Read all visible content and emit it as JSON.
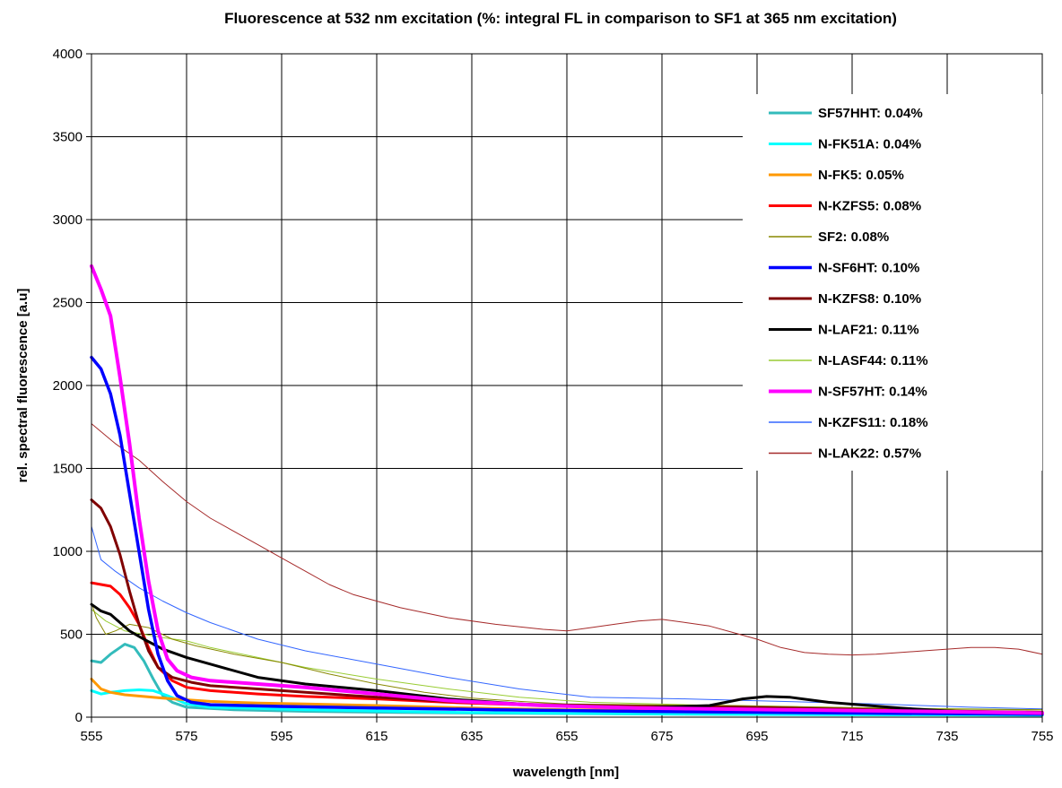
{
  "chart_data": {
    "type": "line",
    "title": "Fluorescence at 532 nm excitation (%: integral FL in comparison to SF1 at 365 nm excitation)",
    "xlabel": "wavelength [nm]",
    "ylabel": "rel. spectral fluorescence [a.u]",
    "xlim": [
      555,
      755
    ],
    "ylim": [
      0,
      4000
    ],
    "xticks": [
      "555",
      "575",
      "595",
      "615",
      "635",
      "655",
      "675",
      "695",
      "715",
      "735",
      "755"
    ],
    "yticks": [
      "0",
      "500",
      "1000",
      "1500",
      "2000",
      "2500",
      "3000",
      "3500",
      "4000"
    ],
    "grid": true,
    "legend_position": "top-right",
    "series": [
      {
        "name": "SF57HHT: 0.04%",
        "color": "#33bbbb",
        "width": 3,
        "points": [
          [
            555,
            340
          ],
          [
            557,
            330
          ],
          [
            559,
            380
          ],
          [
            561,
            420
          ],
          [
            562,
            440
          ],
          [
            564,
            420
          ],
          [
            566,
            340
          ],
          [
            568,
            230
          ],
          [
            570,
            130
          ],
          [
            572,
            90
          ],
          [
            575,
            60
          ],
          [
            585,
            45
          ],
          [
            600,
            35
          ],
          [
            620,
            28
          ],
          [
            650,
            22
          ],
          [
            680,
            18
          ],
          [
            720,
            14
          ],
          [
            755,
            12
          ]
        ]
      },
      {
        "name": "N-FK51A: 0.04%",
        "color": "#00ffff",
        "width": 3,
        "points": [
          [
            555,
            160
          ],
          [
            557,
            140
          ],
          [
            559,
            150
          ],
          [
            562,
            160
          ],
          [
            565,
            165
          ],
          [
            568,
            160
          ],
          [
            571,
            130
          ],
          [
            575,
            80
          ],
          [
            580,
            60
          ],
          [
            600,
            45
          ],
          [
            630,
            30
          ],
          [
            660,
            22
          ],
          [
            700,
            16
          ],
          [
            755,
            12
          ]
        ]
      },
      {
        "name": "N-FK5: 0.05%",
        "color": "#ff9900",
        "width": 3,
        "points": [
          [
            555,
            230
          ],
          [
            557,
            170
          ],
          [
            559,
            150
          ],
          [
            562,
            135
          ],
          [
            566,
            125
          ],
          [
            570,
            115
          ],
          [
            575,
            105
          ],
          [
            580,
            95
          ],
          [
            590,
            85
          ],
          [
            600,
            80
          ],
          [
            615,
            70
          ],
          [
            635,
            55
          ],
          [
            655,
            45
          ],
          [
            675,
            40
          ],
          [
            695,
            35
          ],
          [
            715,
            30
          ],
          [
            735,
            25
          ],
          [
            755,
            22
          ]
        ]
      },
      {
        "name": "N-KZFS5: 0.08%",
        "color": "#ff0000",
        "width": 3,
        "points": [
          [
            555,
            810
          ],
          [
            557,
            800
          ],
          [
            559,
            790
          ],
          [
            561,
            740
          ],
          [
            563,
            660
          ],
          [
            565,
            560
          ],
          [
            567,
            420
          ],
          [
            569,
            300
          ],
          [
            572,
            220
          ],
          [
            575,
            180
          ],
          [
            580,
            160
          ],
          [
            590,
            140
          ],
          [
            600,
            125
          ],
          [
            615,
            110
          ],
          [
            630,
            90
          ],
          [
            650,
            70
          ],
          [
            680,
            55
          ],
          [
            700,
            48
          ],
          [
            720,
            40
          ],
          [
            755,
            30
          ]
        ]
      },
      {
        "name": "SF2: 0.08%",
        "color": "#888800",
        "width": 1,
        "points": [
          [
            555,
            690
          ],
          [
            556,
            600
          ],
          [
            558,
            500
          ],
          [
            560,
            520
          ],
          [
            563,
            560
          ],
          [
            567,
            540
          ],
          [
            572,
            470
          ],
          [
            577,
            430
          ],
          [
            585,
            380
          ],
          [
            595,
            330
          ],
          [
            605,
            260
          ],
          [
            615,
            200
          ],
          [
            625,
            150
          ],
          [
            635,
            115
          ],
          [
            645,
            95
          ],
          [
            655,
            80
          ],
          [
            670,
            75
          ],
          [
            690,
            70
          ],
          [
            710,
            60
          ],
          [
            730,
            50
          ],
          [
            755,
            45
          ]
        ]
      },
      {
        "name": "N-SF6HT: 0.10%",
        "color": "#0000ff",
        "width": 3.5,
        "points": [
          [
            555,
            2170
          ],
          [
            557,
            2100
          ],
          [
            559,
            1950
          ],
          [
            561,
            1700
          ],
          [
            563,
            1350
          ],
          [
            565,
            1000
          ],
          [
            567,
            650
          ],
          [
            569,
            380
          ],
          [
            571,
            220
          ],
          [
            573,
            130
          ],
          [
            576,
            90
          ],
          [
            580,
            75
          ],
          [
            595,
            65
          ],
          [
            615,
            55
          ],
          [
            640,
            45
          ],
          [
            670,
            35
          ],
          [
            700,
            28
          ],
          [
            730,
            22
          ],
          [
            755,
            18
          ]
        ]
      },
      {
        "name": "N-KZFS8: 0.10%",
        "color": "#800000",
        "width": 3,
        "points": [
          [
            555,
            1310
          ],
          [
            557,
            1260
          ],
          [
            559,
            1150
          ],
          [
            561,
            980
          ],
          [
            563,
            760
          ],
          [
            565,
            560
          ],
          [
            567,
            400
          ],
          [
            569,
            300
          ],
          [
            572,
            240
          ],
          [
            576,
            210
          ],
          [
            580,
            190
          ],
          [
            590,
            170
          ],
          [
            600,
            150
          ],
          [
            615,
            120
          ],
          [
            630,
            95
          ],
          [
            650,
            75
          ],
          [
            670,
            65
          ],
          [
            690,
            60
          ],
          [
            700,
            55
          ],
          [
            720,
            45
          ],
          [
            740,
            35
          ],
          [
            755,
            30
          ]
        ]
      },
      {
        "name": "N-LAF21: 0.11%",
        "color": "#000000",
        "width": 3,
        "points": [
          [
            555,
            680
          ],
          [
            557,
            640
          ],
          [
            559,
            620
          ],
          [
            561,
            570
          ],
          [
            563,
            520
          ],
          [
            566,
            470
          ],
          [
            570,
            410
          ],
          [
            575,
            360
          ],
          [
            580,
            320
          ],
          [
            590,
            240
          ],
          [
            600,
            200
          ],
          [
            615,
            160
          ],
          [
            630,
            110
          ],
          [
            650,
            70
          ],
          [
            670,
            55
          ],
          [
            685,
            70
          ],
          [
            692,
            110
          ],
          [
            697,
            125
          ],
          [
            702,
            120
          ],
          [
            710,
            90
          ],
          [
            725,
            55
          ],
          [
            740,
            30
          ],
          [
            755,
            20
          ]
        ]
      },
      {
        "name": "N-LASF44: 0.11%",
        "color": "#99cc33",
        "width": 1,
        "points": [
          [
            555,
            650
          ],
          [
            558,
            580
          ],
          [
            562,
            520
          ],
          [
            566,
            500
          ],
          [
            570,
            480
          ],
          [
            575,
            460
          ],
          [
            580,
            420
          ],
          [
            590,
            360
          ],
          [
            600,
            300
          ],
          [
            615,
            230
          ],
          [
            630,
            170
          ],
          [
            645,
            120
          ],
          [
            660,
            90
          ],
          [
            680,
            75
          ],
          [
            700,
            65
          ],
          [
            720,
            55
          ],
          [
            740,
            50
          ],
          [
            755,
            45
          ]
        ]
      },
      {
        "name": "N-SF57HT: 0.14%",
        "color": "#ff00ff",
        "width": 4,
        "points": [
          [
            555,
            2720
          ],
          [
            557,
            2580
          ],
          [
            559,
            2420
          ],
          [
            561,
            2050
          ],
          [
            563,
            1650
          ],
          [
            565,
            1200
          ],
          [
            567,
            820
          ],
          [
            569,
            520
          ],
          [
            571,
            350
          ],
          [
            573,
            280
          ],
          [
            576,
            240
          ],
          [
            580,
            220
          ],
          [
            590,
            200
          ],
          [
            600,
            180
          ],
          [
            615,
            140
          ],
          [
            630,
            100
          ],
          [
            650,
            70
          ],
          [
            670,
            55
          ],
          [
            700,
            45
          ],
          [
            730,
            35
          ],
          [
            755,
            25
          ]
        ]
      },
      {
        "name": "N-KZFS11: 0.18%",
        "color": "#3366ff",
        "width": 1,
        "points": [
          [
            555,
            1150
          ],
          [
            557,
            950
          ],
          [
            560,
            880
          ],
          [
            565,
            780
          ],
          [
            570,
            700
          ],
          [
            575,
            630
          ],
          [
            580,
            570
          ],
          [
            590,
            470
          ],
          [
            600,
            400
          ],
          [
            615,
            320
          ],
          [
            630,
            240
          ],
          [
            645,
            170
          ],
          [
            660,
            120
          ],
          [
            680,
            110
          ],
          [
            700,
            95
          ],
          [
            720,
            80
          ],
          [
            740,
            60
          ],
          [
            755,
            50
          ]
        ]
      },
      {
        "name": "N-LAK22: 0.57%",
        "color": "#a52a2a",
        "width": 1,
        "points": [
          [
            555,
            1770
          ],
          [
            560,
            1650
          ],
          [
            565,
            1550
          ],
          [
            570,
            1420
          ],
          [
            575,
            1300
          ],
          [
            580,
            1200
          ],
          [
            585,
            1120
          ],
          [
            590,
            1040
          ],
          [
            595,
            960
          ],
          [
            600,
            880
          ],
          [
            605,
            800
          ],
          [
            610,
            740
          ],
          [
            615,
            700
          ],
          [
            620,
            660
          ],
          [
            630,
            600
          ],
          [
            640,
            560
          ],
          [
            650,
            530
          ],
          [
            655,
            520
          ],
          [
            660,
            540
          ],
          [
            665,
            560
          ],
          [
            670,
            580
          ],
          [
            675,
            590
          ],
          [
            680,
            570
          ],
          [
            685,
            550
          ],
          [
            690,
            510
          ],
          [
            695,
            470
          ],
          [
            700,
            420
          ],
          [
            705,
            390
          ],
          [
            710,
            380
          ],
          [
            715,
            375
          ],
          [
            720,
            380
          ],
          [
            725,
            390
          ],
          [
            730,
            400
          ],
          [
            735,
            410
          ],
          [
            740,
            420
          ],
          [
            745,
            420
          ],
          [
            750,
            410
          ],
          [
            755,
            380
          ]
        ]
      }
    ]
  }
}
